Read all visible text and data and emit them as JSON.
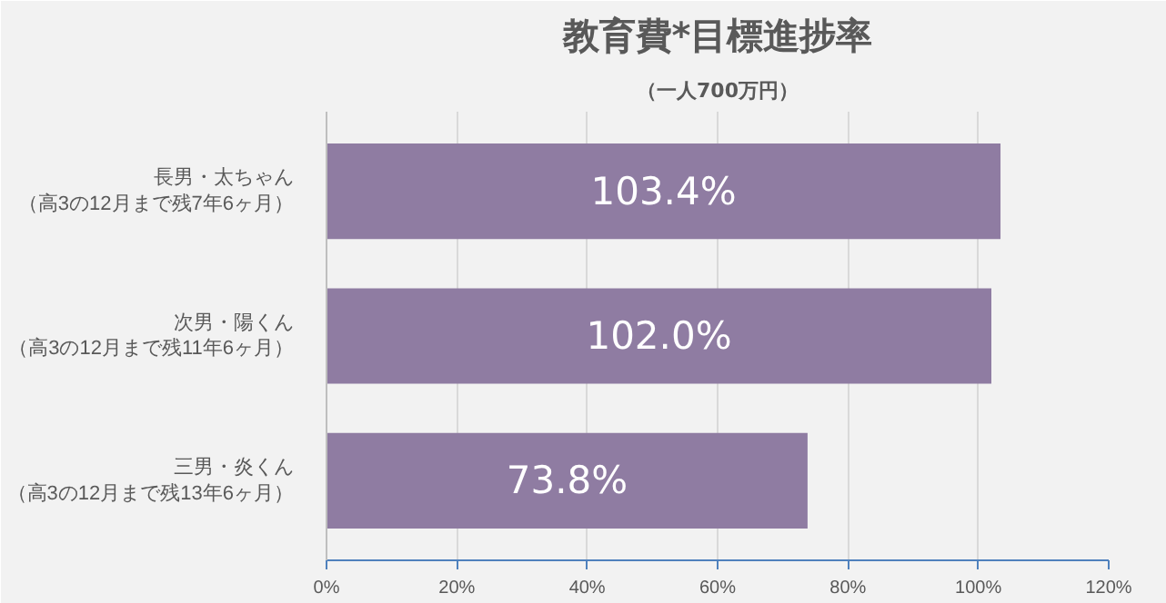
{
  "chart_data": {
    "type": "bar",
    "orientation": "horizontal",
    "title": "教育費*目標進捗率",
    "subtitle": "（一人700万円）",
    "categories": [
      "長男・太ちゃん（高3の12月まで残7年6ヶ月）",
      "次男・陽くん（高3の12月まで残11年6ヶ月）",
      "三男・炎くん（高3の12月まで残13年6ヶ月）"
    ],
    "values": [
      103.4,
      102.0,
      73.8
    ],
    "color": "#8f7ca2",
    "value_labels": [
      "103.4%",
      "102.0%",
      "73.8%"
    ],
    "xlim": [
      0,
      120
    ],
    "xticks": [
      {
        "value": 0,
        "label": "0%"
      },
      {
        "value": 20,
        "label": "20%"
      },
      {
        "value": 40,
        "label": "40%"
      },
      {
        "value": 60,
        "label": "60%"
      },
      {
        "value": 80,
        "label": "80%"
      },
      {
        "value": 100,
        "label": "100%"
      },
      {
        "value": 120,
        "label": "120%"
      }
    ],
    "grid": "x"
  }
}
